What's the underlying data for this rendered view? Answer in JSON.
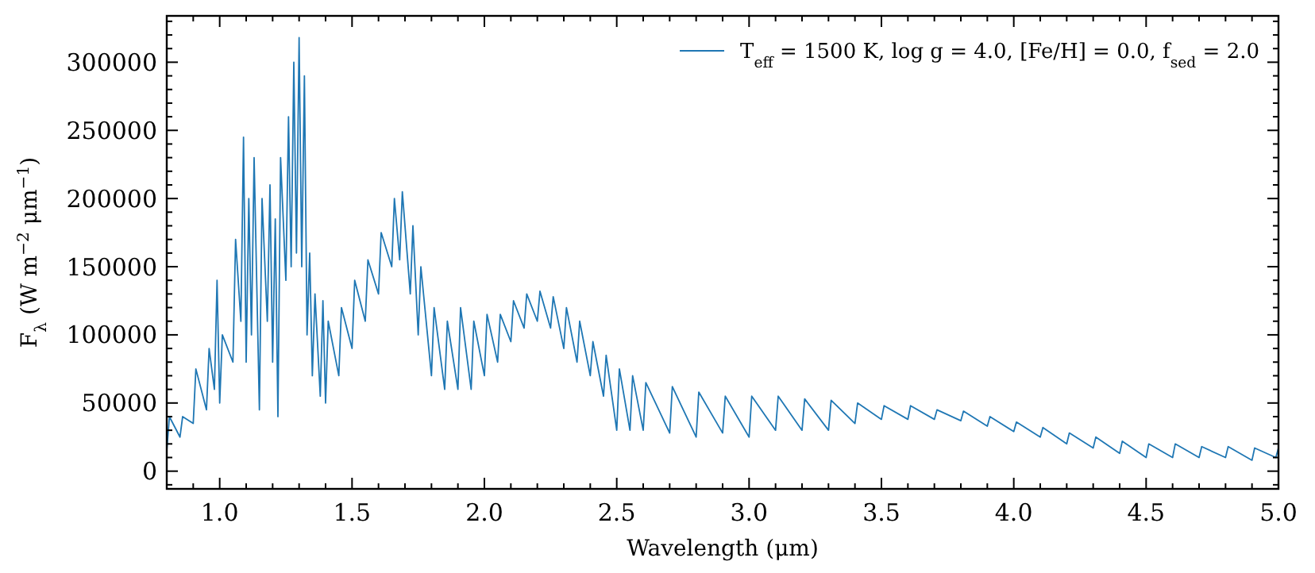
{
  "chart_data": {
    "type": "line",
    "xlabel": "Wavelength (μm)",
    "ylabel": "F$_{λ}$ (W m$^{−2}$ μm$^{−1}$)",
    "legend": "top right",
    "grid": false,
    "marker": "none",
    "line_style": "solid",
    "xlim": [
      0.8,
      5.0
    ],
    "ylim": [
      -13000,
      334000
    ],
    "xticks": [
      {
        "value": 0.8,
        "label": null
      },
      {
        "value": 0.9,
        "label": null
      },
      {
        "value": 1.0,
        "label": "1.0"
      },
      {
        "value": 1.1,
        "label": null
      },
      {
        "value": 1.2,
        "label": null
      },
      {
        "value": 1.3,
        "label": null
      },
      {
        "value": 1.4,
        "label": null
      },
      {
        "value": 1.5,
        "label": "1.5"
      },
      {
        "value": 1.6,
        "label": null
      },
      {
        "value": 1.7,
        "label": null
      },
      {
        "value": 1.8,
        "label": null
      },
      {
        "value": 1.9,
        "label": null
      },
      {
        "value": 2.0,
        "label": "2.0"
      },
      {
        "value": 2.1,
        "label": null
      },
      {
        "value": 2.2,
        "label": null
      },
      {
        "value": 2.3,
        "label": null
      },
      {
        "value": 2.4,
        "label": null
      },
      {
        "value": 2.5,
        "label": "2.5"
      },
      {
        "value": 2.6,
        "label": null
      },
      {
        "value": 2.7,
        "label": null
      },
      {
        "value": 2.8,
        "label": null
      },
      {
        "value": 2.9,
        "label": null
      },
      {
        "value": 3.0,
        "label": "3.0"
      },
      {
        "value": 3.1,
        "label": null
      },
      {
        "value": 3.2,
        "label": null
      },
      {
        "value": 3.3,
        "label": null
      },
      {
        "value": 3.4,
        "label": null
      },
      {
        "value": 3.5,
        "label": "3.5"
      },
      {
        "value": 3.6,
        "label": null
      },
      {
        "value": 3.7,
        "label": null
      },
      {
        "value": 3.8,
        "label": null
      },
      {
        "value": 3.9,
        "label": null
      },
      {
        "value": 4.0,
        "label": "4.0"
      },
      {
        "value": 4.1,
        "label": null
      },
      {
        "value": 4.2,
        "label": null
      },
      {
        "value": 4.3,
        "label": null
      },
      {
        "value": 4.4,
        "label": null
      },
      {
        "value": 4.5,
        "label": "4.5"
      },
      {
        "value": 4.6,
        "label": null
      },
      {
        "value": 4.7,
        "label": null
      },
      {
        "value": 4.8,
        "label": null
      },
      {
        "value": 4.9,
        "label": null
      },
      {
        "value": 5.0,
        "label": "5.0"
      }
    ],
    "yticks": [
      {
        "value": -10000,
        "label": null
      },
      0,
      {
        "value": 10000,
        "label": null
      },
      {
        "value": 20000,
        "label": null
      },
      {
        "value": 30000,
        "label": null
      },
      {
        "value": 40000,
        "label": null
      },
      50000,
      {
        "value": 60000,
        "label": null
      },
      {
        "value": 70000,
        "label": null
      },
      {
        "value": 80000,
        "label": null
      },
      {
        "value": 90000,
        "label": null
      },
      100000,
      {
        "value": 110000,
        "label": null
      },
      {
        "value": 120000,
        "label": null
      },
      {
        "value": 130000,
        "label": null
      },
      {
        "value": 140000,
        "label": null
      },
      150000,
      {
        "value": 160000,
        "label": null
      },
      {
        "value": 170000,
        "label": null
      },
      {
        "value": 180000,
        "label": null
      },
      {
        "value": 190000,
        "label": null
      },
      200000,
      {
        "value": 210000,
        "label": null
      },
      {
        "value": 220000,
        "label": null
      },
      {
        "value": 230000,
        "label": null
      },
      {
        "value": 240000,
        "label": null
      },
      250000,
      {
        "value": 260000,
        "label": null
      },
      {
        "value": 270000,
        "label": null
      },
      {
        "value": 280000,
        "label": null
      },
      {
        "value": 290000,
        "label": null
      },
      300000,
      {
        "value": 310000,
        "label": null
      },
      {
        "value": 320000,
        "label": null
      },
      {
        "value": 330000,
        "label": null
      }
    ],
    "series": [
      {
        "name": "T$_{eff}$ = 1500 K, log g = 4.0, [Fe/H] = 0.0, f$_{sed}$ = 2.0",
        "color": "#1f77b4",
        "x": [
          0.8,
          0.81,
          0.85,
          0.86,
          0.9,
          0.91,
          0.95,
          0.96,
          0.98,
          0.99,
          1.0,
          1.01,
          1.05,
          1.06,
          1.08,
          1.09,
          1.1,
          1.11,
          1.12,
          1.13,
          1.15,
          1.16,
          1.18,
          1.19,
          1.2,
          1.21,
          1.22,
          1.23,
          1.25,
          1.26,
          1.27,
          1.28,
          1.29,
          1.3,
          1.31,
          1.32,
          1.33,
          1.34,
          1.35,
          1.36,
          1.38,
          1.39,
          1.4,
          1.41,
          1.45,
          1.46,
          1.5,
          1.51,
          1.55,
          1.56,
          1.6,
          1.61,
          1.65,
          1.66,
          1.68,
          1.69,
          1.72,
          1.73,
          1.75,
          1.76,
          1.8,
          1.81,
          1.85,
          1.86,
          1.9,
          1.91,
          1.95,
          1.96,
          2.0,
          2.01,
          2.05,
          2.06,
          2.1,
          2.11,
          2.15,
          2.16,
          2.2,
          2.21,
          2.25,
          2.26,
          2.3,
          2.31,
          2.35,
          2.36,
          2.4,
          2.41,
          2.45,
          2.46,
          2.5,
          2.51,
          2.55,
          2.56,
          2.6,
          2.61,
          2.7,
          2.71,
          2.8,
          2.81,
          2.9,
          2.91,
          3.0,
          3.01,
          3.1,
          3.11,
          3.2,
          3.21,
          3.3,
          3.31,
          3.4,
          3.41,
          3.5,
          3.51,
          3.6,
          3.61,
          3.7,
          3.71,
          3.8,
          3.81,
          3.9,
          3.91,
          4.0,
          4.01,
          4.1,
          4.11,
          4.2,
          4.21,
          4.3,
          4.31,
          4.4,
          4.41,
          4.5,
          4.51,
          4.6,
          4.61,
          4.7,
          4.71,
          4.8,
          4.81,
          4.9,
          4.91,
          4.99,
          5.0
        ],
        "values": [
          15000,
          40000,
          25000,
          40000,
          35000,
          75000,
          45000,
          90000,
          60000,
          140000,
          50000,
          100000,
          80000,
          170000,
          110000,
          245000,
          80000,
          200000,
          100000,
          230000,
          45000,
          200000,
          110000,
          210000,
          80000,
          185000,
          40000,
          230000,
          140000,
          260000,
          150000,
          300000,
          160000,
          318000,
          150000,
          290000,
          100000,
          160000,
          70000,
          130000,
          55000,
          125000,
          50000,
          110000,
          70000,
          120000,
          90000,
          140000,
          110000,
          155000,
          130000,
          175000,
          150000,
          200000,
          155000,
          205000,
          130000,
          180000,
          100000,
          150000,
          70000,
          120000,
          60000,
          110000,
          60000,
          120000,
          60000,
          110000,
          70000,
          115000,
          80000,
          115000,
          95000,
          125000,
          105000,
          130000,
          110000,
          132000,
          105000,
          128000,
          90000,
          120000,
          80000,
          110000,
          70000,
          95000,
          55000,
          85000,
          30000,
          75000,
          30000,
          70000,
          30000,
          65000,
          28000,
          62000,
          25000,
          58000,
          28000,
          55000,
          25000,
          55000,
          30000,
          55000,
          30000,
          53000,
          30000,
          52000,
          35000,
          50000,
          38000,
          48000,
          38000,
          48000,
          38000,
          45000,
          37000,
          44000,
          33000,
          40000,
          29000,
          36000,
          25000,
          32000,
          20000,
          28000,
          17000,
          25000,
          13000,
          22000,
          10000,
          20000,
          10000,
          20000,
          10000,
          18000,
          10000,
          18000,
          8000,
          17000,
          10000,
          17000
        ]
      }
    ]
  }
}
